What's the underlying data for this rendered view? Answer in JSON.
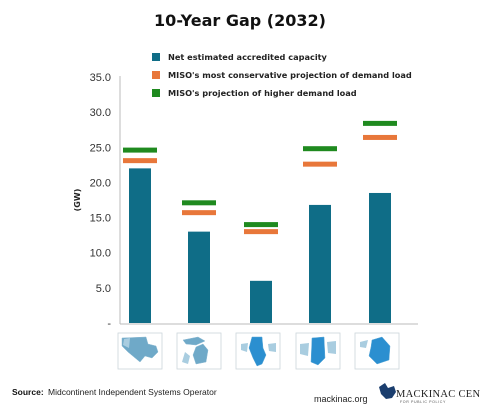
{
  "chart_data": {
    "type": "bar",
    "title": "10-Year Gap (2032)",
    "ylabel": "(GW)",
    "ylim": [
      0,
      35
    ],
    "yticks": [
      "-",
      "5.0",
      "10.0",
      "15.0",
      "20.0",
      "25.0",
      "30.0",
      "35.0"
    ],
    "categories": [
      "",
      "",
      "",
      "",
      ""
    ],
    "category_icons": [
      "miso-region-map-icon",
      "michigan-map-icon",
      "illinois-map-icon",
      "indiana-map-icon",
      "lower-michigan-map-icon"
    ],
    "legend_position": "top",
    "series": [
      {
        "name": "Net estimated accredited capacity",
        "kind": "bar",
        "color": "#0f6d87",
        "values": [
          22.0,
          13.0,
          6.0,
          16.8,
          18.5
        ]
      },
      {
        "name": "MISO's most conservative projection of demand load",
        "kind": "marker",
        "color": "#e8773a",
        "values": [
          23.1,
          15.7,
          13.0,
          22.6,
          26.4
        ]
      },
      {
        "name": "MISO's projection of higher demand load",
        "kind": "marker",
        "color": "#1f8a1f",
        "values": [
          24.6,
          17.1,
          14.0,
          24.8,
          28.4
        ]
      }
    ]
  },
  "footer": {
    "source_label": "Source:",
    "source_text": "Midcontinent Independent Systems Operator",
    "website": "mackinac.org",
    "logo_main": "MACKINAC CENTER",
    "logo_sub": "FOR PUBLIC POLICY",
    "logo_icon": "michigan-outline-icon"
  }
}
